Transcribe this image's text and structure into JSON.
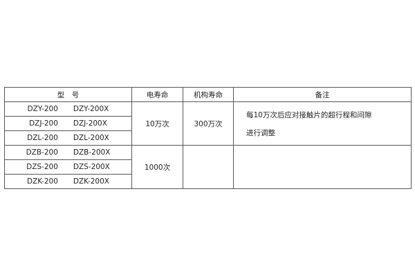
{
  "headers": [
    "型　号",
    "电寿命",
    "机构寿命",
    "备注"
  ],
  "rows": [
    {
      "model": "DZY-200",
      "model_x": "DZY-200X"
    },
    {
      "model": "DZJ-200",
      "model_x": "DZJ-200X"
    },
    {
      "model": "DZL-200",
      "model_x": "DZL-200X"
    },
    {
      "model": "DZB-200",
      "model_x": "DZB-200X"
    },
    {
      "model": "DZS-200",
      "model_x": "DZS-200X"
    },
    {
      "model": "DZK-200",
      "model_x": "DZK-200X"
    }
  ],
  "group1": {
    "electrical_life": "10万次",
    "mechanical_life": "300万次",
    "note_line1": "每10万次后应对接触片的超行程和间隙",
    "note_line2": "进行调整"
  },
  "group2": {
    "electrical_life": "1000次"
  }
}
